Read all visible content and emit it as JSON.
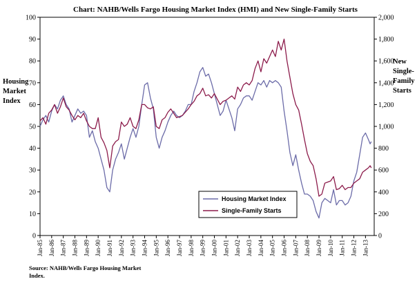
{
  "chart_data": {
    "type": "line",
    "title": "Chart:  NAHB/Wells Fargo Housing Market Index (HMI) and New Single-Family Starts",
    "left_axis": {
      "label": [
        "Housing",
        "Market",
        "Index"
      ],
      "ylim": [
        0,
        100
      ],
      "ticks": [
        "0",
        "10",
        "20",
        "30",
        "40",
        "50",
        "60",
        "70",
        "80",
        "90",
        "100"
      ]
    },
    "right_axis": {
      "label": [
        "New",
        "Single-",
        "Family",
        "Starts"
      ],
      "ylim": [
        0,
        2000
      ],
      "ticks": [
        "0",
        "200",
        "400",
        "600",
        "800",
        "1,000",
        "1,200",
        "1,400",
        "1,600",
        "1,800",
        "2,000"
      ]
    },
    "x_ticks": [
      "Jan-85",
      "Jan-86",
      "Jan-87",
      "Jan-88",
      "Jan-89",
      "Jan-90",
      "Jan-91",
      "Jan-92",
      "Jan-93",
      "Jan-94",
      "Jan-95",
      "Jan-96",
      "Jan-97",
      "Jan-98",
      "Jan-99",
      "Jan-00",
      "Jan-01",
      "Jan-02",
      "Jan-03",
      "Jan-04",
      "Jan-05",
      "Jan-06",
      "Jan-07",
      "Jan-08",
      "Jan-09",
      "Jan-10",
      "Jan-11",
      "Jan-12",
      "Jan-13"
    ],
    "x_range": [
      1985.0,
      2013.75
    ],
    "grid": false,
    "legend_placement": "bottom-center",
    "series": [
      {
        "name": "Housing Market Index",
        "axis": "left",
        "color": "#6b6ba8",
        "points": [
          [
            1985.0,
            50
          ],
          [
            1985.25,
            53
          ],
          [
            1985.5,
            55
          ],
          [
            1985.75,
            52
          ],
          [
            1986.0,
            57
          ],
          [
            1986.25,
            60
          ],
          [
            1986.5,
            58
          ],
          [
            1986.75,
            62
          ],
          [
            1987.0,
            64
          ],
          [
            1987.25,
            60
          ],
          [
            1987.5,
            58
          ],
          [
            1987.75,
            52
          ],
          [
            1988.0,
            55
          ],
          [
            1988.25,
            58
          ],
          [
            1988.5,
            56
          ],
          [
            1988.75,
            57
          ],
          [
            1989.0,
            55
          ],
          [
            1989.25,
            45
          ],
          [
            1989.5,
            48
          ],
          [
            1989.75,
            43
          ],
          [
            1990.0,
            40
          ],
          [
            1990.25,
            35
          ],
          [
            1990.5,
            30
          ],
          [
            1990.75,
            22
          ],
          [
            1991.0,
            20
          ],
          [
            1991.25,
            30
          ],
          [
            1991.5,
            35
          ],
          [
            1991.75,
            38
          ],
          [
            1992.0,
            42
          ],
          [
            1992.25,
            35
          ],
          [
            1992.5,
            40
          ],
          [
            1992.75,
            45
          ],
          [
            1993.0,
            49
          ],
          [
            1993.25,
            45
          ],
          [
            1993.5,
            50
          ],
          [
            1993.75,
            60
          ],
          [
            1994.0,
            69
          ],
          [
            1994.25,
            70
          ],
          [
            1994.5,
            63
          ],
          [
            1994.75,
            58
          ],
          [
            1995.0,
            45
          ],
          [
            1995.25,
            40
          ],
          [
            1995.5,
            45
          ],
          [
            1995.75,
            48
          ],
          [
            1996.0,
            52
          ],
          [
            1996.25,
            55
          ],
          [
            1996.5,
            57
          ],
          [
            1996.75,
            55
          ],
          [
            1997.0,
            54
          ],
          [
            1997.25,
            55
          ],
          [
            1997.5,
            57
          ],
          [
            1997.75,
            60
          ],
          [
            1998.0,
            60
          ],
          [
            1998.25,
            66
          ],
          [
            1998.5,
            70
          ],
          [
            1998.75,
            75
          ],
          [
            1999.0,
            77
          ],
          [
            1999.25,
            73
          ],
          [
            1999.5,
            74
          ],
          [
            1999.75,
            70
          ],
          [
            2000.0,
            65
          ],
          [
            2000.25,
            60
          ],
          [
            2000.5,
            55
          ],
          [
            2000.75,
            57
          ],
          [
            2001.0,
            62
          ],
          [
            2001.25,
            58
          ],
          [
            2001.5,
            54
          ],
          [
            2001.75,
            48
          ],
          [
            2002.0,
            58
          ],
          [
            2002.25,
            60
          ],
          [
            2002.5,
            63
          ],
          [
            2002.75,
            64
          ],
          [
            2003.0,
            64
          ],
          [
            2003.25,
            62
          ],
          [
            2003.5,
            66
          ],
          [
            2003.75,
            70
          ],
          [
            2004.0,
            69
          ],
          [
            2004.25,
            71
          ],
          [
            2004.5,
            68
          ],
          [
            2004.75,
            71
          ],
          [
            2005.0,
            70
          ],
          [
            2005.25,
            71
          ],
          [
            2005.5,
            70
          ],
          [
            2005.75,
            68
          ],
          [
            2006.0,
            57
          ],
          [
            2006.25,
            48
          ],
          [
            2006.5,
            38
          ],
          [
            2006.75,
            32
          ],
          [
            2007.0,
            37
          ],
          [
            2007.25,
            30
          ],
          [
            2007.5,
            24
          ],
          [
            2007.75,
            19
          ],
          [
            2008.0,
            19
          ],
          [
            2008.25,
            18
          ],
          [
            2008.5,
            16
          ],
          [
            2008.75,
            11
          ],
          [
            2009.0,
            8
          ],
          [
            2009.25,
            15
          ],
          [
            2009.5,
            17
          ],
          [
            2009.75,
            16
          ],
          [
            2010.0,
            15
          ],
          [
            2010.25,
            21
          ],
          [
            2010.5,
            14
          ],
          [
            2010.75,
            16
          ],
          [
            2011.0,
            16
          ],
          [
            2011.25,
            14
          ],
          [
            2011.5,
            15
          ],
          [
            2011.75,
            18
          ],
          [
            2012.0,
            25
          ],
          [
            2012.25,
            29
          ],
          [
            2012.5,
            37
          ],
          [
            2012.75,
            45
          ],
          [
            2013.0,
            47
          ],
          [
            2013.25,
            44
          ],
          [
            2013.4,
            42
          ],
          [
            2013.5,
            43
          ]
        ]
      },
      {
        "name": "Single-Family Starts",
        "axis": "right",
        "color": "#8b1a4a",
        "points": [
          [
            1985.0,
            1050
          ],
          [
            1985.25,
            1080
          ],
          [
            1985.5,
            1020
          ],
          [
            1985.75,
            1120
          ],
          [
            1986.0,
            1150
          ],
          [
            1986.25,
            1200
          ],
          [
            1986.5,
            1120
          ],
          [
            1986.75,
            1180
          ],
          [
            1987.0,
            1260
          ],
          [
            1987.25,
            1180
          ],
          [
            1987.5,
            1150
          ],
          [
            1987.75,
            1100
          ],
          [
            1988.0,
            1060
          ],
          [
            1988.25,
            1100
          ],
          [
            1988.5,
            1080
          ],
          [
            1988.75,
            1120
          ],
          [
            1989.0,
            1050
          ],
          [
            1989.25,
            1000
          ],
          [
            1989.5,
            980
          ],
          [
            1989.75,
            980
          ],
          [
            1990.0,
            1080
          ],
          [
            1990.25,
            900
          ],
          [
            1990.5,
            850
          ],
          [
            1990.75,
            780
          ],
          [
            1991.0,
            620
          ],
          [
            1991.25,
            820
          ],
          [
            1991.5,
            860
          ],
          [
            1991.75,
            880
          ],
          [
            1992.0,
            1040
          ],
          [
            1992.25,
            1000
          ],
          [
            1992.5,
            1020
          ],
          [
            1992.75,
            1080
          ],
          [
            1993.0,
            1000
          ],
          [
            1993.25,
            980
          ],
          [
            1993.5,
            1060
          ],
          [
            1993.75,
            1200
          ],
          [
            1994.0,
            1200
          ],
          [
            1994.25,
            1170
          ],
          [
            1994.5,
            1160
          ],
          [
            1994.75,
            1180
          ],
          [
            1995.0,
            1000
          ],
          [
            1995.25,
            980
          ],
          [
            1995.5,
            1060
          ],
          [
            1995.75,
            1080
          ],
          [
            1996.0,
            1130
          ],
          [
            1996.25,
            1160
          ],
          [
            1996.5,
            1120
          ],
          [
            1996.75,
            1080
          ],
          [
            1997.0,
            1090
          ],
          [
            1997.25,
            1100
          ],
          [
            1997.5,
            1130
          ],
          [
            1997.75,
            1160
          ],
          [
            1998.0,
            1200
          ],
          [
            1998.25,
            1230
          ],
          [
            1998.5,
            1280
          ],
          [
            1998.75,
            1300
          ],
          [
            1999.0,
            1350
          ],
          [
            1999.25,
            1280
          ],
          [
            1999.5,
            1290
          ],
          [
            1999.75,
            1260
          ],
          [
            2000.0,
            1300
          ],
          [
            2000.25,
            1250
          ],
          [
            2000.5,
            1200
          ],
          [
            2000.75,
            1230
          ],
          [
            2001.0,
            1240
          ],
          [
            2001.25,
            1260
          ],
          [
            2001.5,
            1280
          ],
          [
            2001.75,
            1250
          ],
          [
            2002.0,
            1360
          ],
          [
            2002.25,
            1320
          ],
          [
            2002.5,
            1380
          ],
          [
            2002.75,
            1400
          ],
          [
            2003.0,
            1380
          ],
          [
            2003.25,
            1420
          ],
          [
            2003.5,
            1530
          ],
          [
            2003.75,
            1600
          ],
          [
            2004.0,
            1500
          ],
          [
            2004.25,
            1620
          ],
          [
            2004.5,
            1580
          ],
          [
            2004.75,
            1640
          ],
          [
            2005.0,
            1700
          ],
          [
            2005.25,
            1640
          ],
          [
            2005.5,
            1780
          ],
          [
            2005.75,
            1700
          ],
          [
            2006.0,
            1800
          ],
          [
            2006.25,
            1600
          ],
          [
            2006.5,
            1450
          ],
          [
            2006.75,
            1300
          ],
          [
            2007.0,
            1200
          ],
          [
            2007.25,
            1150
          ],
          [
            2007.5,
            1020
          ],
          [
            2007.75,
            880
          ],
          [
            2008.0,
            750
          ],
          [
            2008.25,
            680
          ],
          [
            2008.5,
            640
          ],
          [
            2008.75,
            520
          ],
          [
            2009.0,
            360
          ],
          [
            2009.25,
            380
          ],
          [
            2009.5,
            480
          ],
          [
            2009.75,
            490
          ],
          [
            2010.0,
            500
          ],
          [
            2010.25,
            540
          ],
          [
            2010.5,
            420
          ],
          [
            2010.75,
            430
          ],
          [
            2011.0,
            460
          ],
          [
            2011.25,
            420
          ],
          [
            2011.5,
            440
          ],
          [
            2011.75,
            440
          ],
          [
            2012.0,
            480
          ],
          [
            2012.25,
            500
          ],
          [
            2012.5,
            520
          ],
          [
            2012.75,
            580
          ],
          [
            2013.0,
            600
          ],
          [
            2013.25,
            620
          ],
          [
            2013.4,
            640
          ],
          [
            2013.5,
            620
          ]
        ]
      }
    ],
    "source_note": [
      "Source: NAHB/Wells Fargo Housing Market",
      "Index."
    ]
  }
}
